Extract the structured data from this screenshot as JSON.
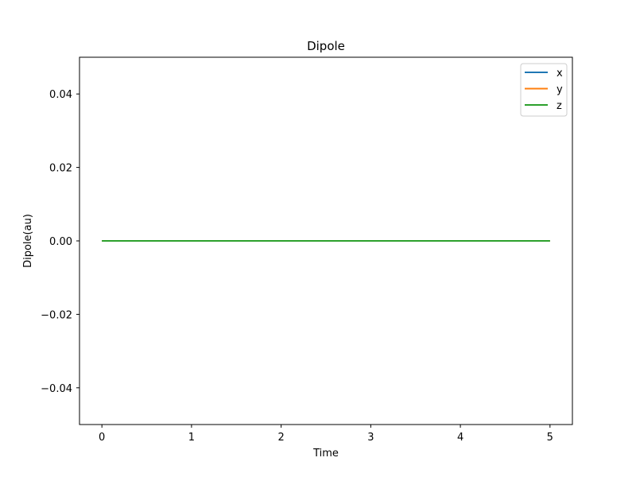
{
  "chart_data": {
    "type": "line",
    "title": "Dipole",
    "xlabel": "Time",
    "ylabel": "Dipole(au)",
    "xlim": [
      -0.25,
      5.25
    ],
    "ylim": [
      -0.05,
      0.05
    ],
    "xticks": [
      0,
      1,
      2,
      3,
      4,
      5
    ],
    "xtick_labels": [
      "0",
      "1",
      "2",
      "3",
      "4",
      "5"
    ],
    "yticks": [
      -0.04,
      -0.02,
      0.0,
      0.02,
      0.04
    ],
    "ytick_labels": [
      "−0.04",
      "−0.02",
      "0.00",
      "0.02",
      "0.04"
    ],
    "grid": false,
    "legend_position": "top-right",
    "x": [
      0,
      5
    ],
    "series": [
      {
        "name": "x",
        "color": "#1f77b4",
        "values": [
          0.0,
          0.0
        ]
      },
      {
        "name": "y",
        "color": "#ff7f0e",
        "values": [
          0.0,
          0.0
        ]
      },
      {
        "name": "z",
        "color": "#2ca02c",
        "values": [
          0.0,
          0.0
        ]
      }
    ]
  }
}
